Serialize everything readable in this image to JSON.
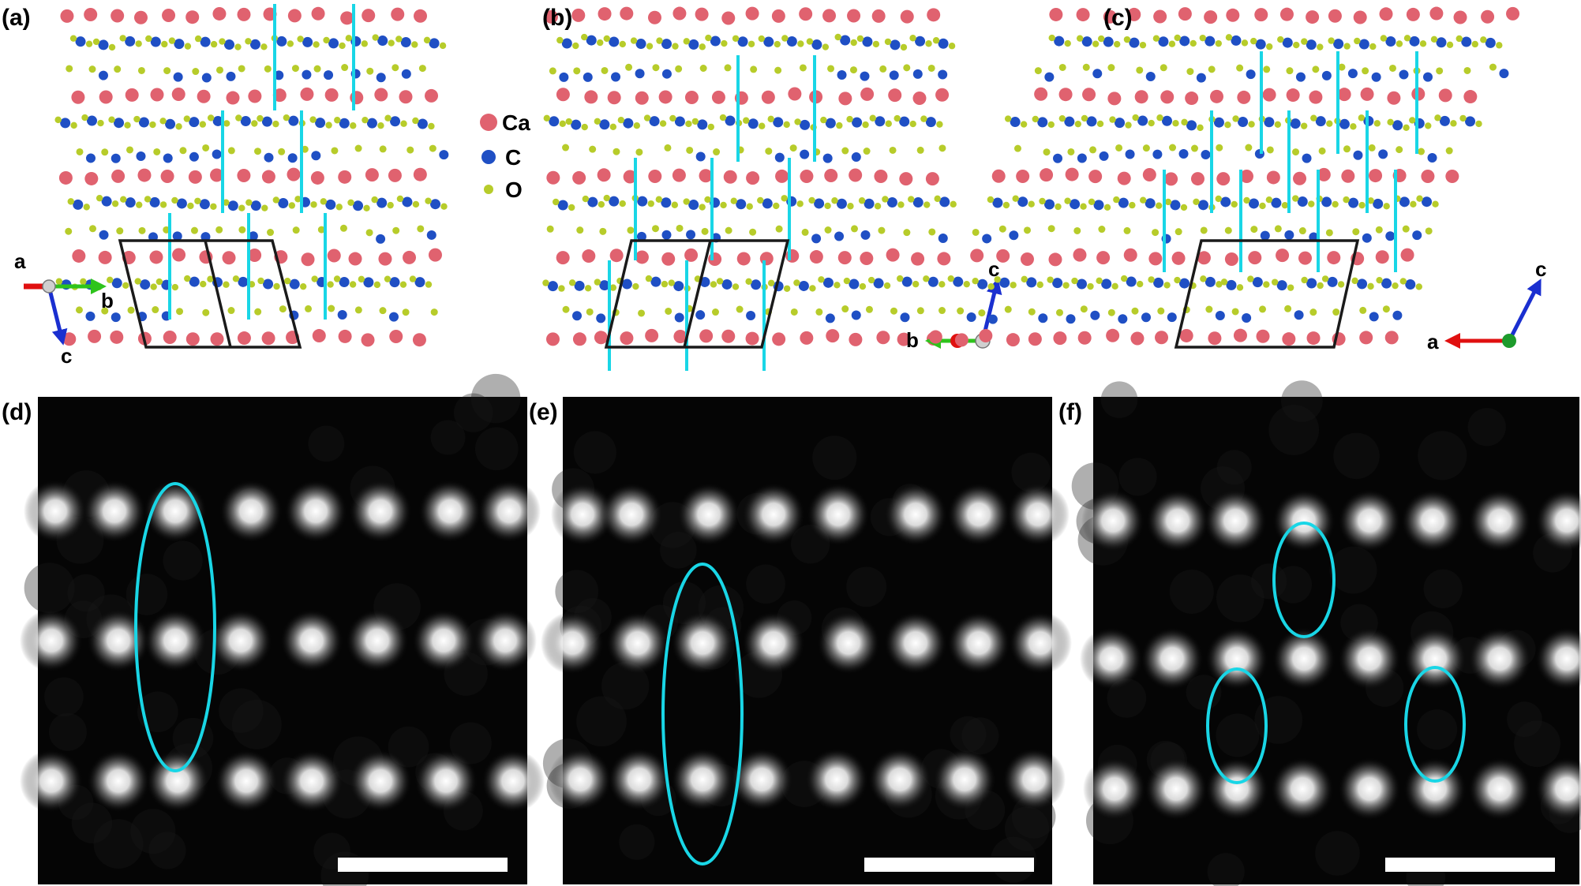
{
  "panels": [
    {
      "label": "(a)"
    },
    {
      "label": "(b)"
    },
    {
      "label": "(c)"
    },
    {
      "label": "(d)"
    },
    {
      "label": "(e)"
    },
    {
      "label": "(f)"
    }
  ],
  "legend": [
    {
      "symbol": "Ca",
      "color": "#e0626f"
    },
    {
      "symbol": "C",
      "color": "#1f4fc4"
    },
    {
      "symbol": "O",
      "color": "#b7cc2a"
    }
  ],
  "axes": {
    "a": {
      "x": "b",
      "y": "c",
      "depth": "a"
    },
    "b": {
      "x": "b",
      "y": "c"
    },
    "c": {
      "x": "a",
      "y": "c"
    }
  },
  "colors": {
    "highlight": "#19d6e6",
    "cell_outline": "#1a1a1a",
    "axis_a": "#e01010",
    "axis_b": "#2ec41c",
    "axis_c": "#1a2fd0",
    "scale_bar": "#ffffff",
    "stem_background": "#050505"
  }
}
